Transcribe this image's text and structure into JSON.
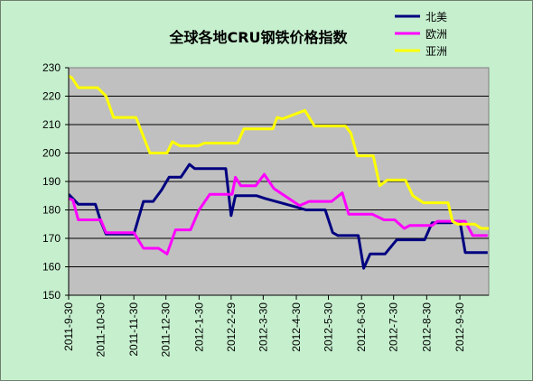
{
  "chart_data": {
    "type": "line",
    "title": "全球各地CRU钢铁价格指数",
    "xlabel": "",
    "ylabel": "",
    "ylim": [
      150,
      230
    ],
    "yticks": [
      150,
      160,
      170,
      180,
      190,
      200,
      210,
      220,
      230
    ],
    "x_range": [
      "2011-9-30",
      "2012-10-27"
    ],
    "x_tick_labels": [
      "2011-9-30",
      "2011-10-30",
      "2011-11-30",
      "2011-12-30",
      "2012-1-30",
      "2012-2-29",
      "2012-3-30",
      "2012-4-30",
      "2012-5-30",
      "2012-6-30",
      "2012-7-30",
      "2012-8-30",
      "2012-9-30"
    ],
    "plot_background": "#c0c0c0",
    "grid": "horizontal",
    "legend_position": "top-right",
    "series": [
      {
        "name": "北美",
        "color": "#000080",
        "points": [
          [
            "2011-9-30",
            185.5
          ],
          [
            "2011-10-4",
            184
          ],
          [
            "2011-10-9",
            182
          ],
          [
            "2011-10-25",
            182
          ],
          [
            "2011-10-30",
            176
          ],
          [
            "2011-11-4",
            171.5
          ],
          [
            "2011-11-30",
            171.5
          ],
          [
            "2011-12-9",
            183
          ],
          [
            "2011-12-18",
            183
          ],
          [
            "2011-12-26",
            187
          ],
          [
            "2012-1-2",
            191.5
          ],
          [
            "2012-1-13",
            191.5
          ],
          [
            "2012-1-21",
            196
          ],
          [
            "2012-1-26",
            194.5
          ],
          [
            "2012-2-24",
            194.5
          ],
          [
            "2012-2-29",
            178
          ],
          [
            "2012-3-4",
            185
          ],
          [
            "2012-3-24",
            185
          ],
          [
            "2012-4-1",
            184
          ],
          [
            "2012-4-30",
            181
          ],
          [
            "2012-5-9",
            180
          ],
          [
            "2012-5-27",
            180
          ],
          [
            "2012-6-3",
            172
          ],
          [
            "2012-6-8",
            171
          ],
          [
            "2012-6-27",
            171
          ],
          [
            "2012-7-2",
            159.5
          ],
          [
            "2012-7-8",
            164.5
          ],
          [
            "2012-7-22",
            164.5
          ],
          [
            "2012-8-2",
            169.5
          ],
          [
            "2012-8-28",
            169.5
          ],
          [
            "2012-9-4",
            175.5
          ],
          [
            "2012-9-22",
            175.5
          ],
          [
            "2012-9-26",
            176
          ],
          [
            "2012-9-30",
            176
          ],
          [
            "2012-10-5",
            165
          ],
          [
            "2012-10-26",
            165
          ]
        ]
      },
      {
        "name": "欧洲",
        "color": "#ff00ff",
        "points": [
          [
            "2011-9-30",
            184
          ],
          [
            "2011-10-4",
            183.5
          ],
          [
            "2011-10-9",
            176.5
          ],
          [
            "2011-10-30",
            176.5
          ],
          [
            "2011-11-4",
            172
          ],
          [
            "2011-11-30",
            172
          ],
          [
            "2011-12-9",
            166.5
          ],
          [
            "2011-12-23",
            166.5
          ],
          [
            "2011-12-31",
            164.5
          ],
          [
            "2012-1-8",
            173
          ],
          [
            "2012-1-22",
            173
          ],
          [
            "2012-1-30",
            180
          ],
          [
            "2012-2-9",
            185.5
          ],
          [
            "2012-3-1",
            185.5
          ],
          [
            "2012-3-4",
            191.5
          ],
          [
            "2012-3-9",
            188.5
          ],
          [
            "2012-3-23",
            188.5
          ],
          [
            "2012-3-31",
            192.5
          ],
          [
            "2012-4-9",
            187.5
          ],
          [
            "2012-5-3",
            181.5
          ],
          [
            "2012-5-12",
            183
          ],
          [
            "2012-6-2",
            183
          ],
          [
            "2012-6-12",
            186
          ],
          [
            "2012-6-18",
            178.5
          ],
          [
            "2012-7-10",
            178.5
          ],
          [
            "2012-7-21",
            176.5
          ],
          [
            "2012-7-31",
            176.5
          ],
          [
            "2012-8-9",
            173.5
          ],
          [
            "2012-8-14",
            174.5
          ],
          [
            "2012-9-4",
            174.5
          ],
          [
            "2012-9-9",
            176
          ],
          [
            "2012-10-5",
            176
          ],
          [
            "2012-10-12",
            171
          ],
          [
            "2012-10-26",
            171
          ]
        ]
      },
      {
        "name": "亚洲",
        "color": "#ffff00",
        "points": [
          [
            "2011-9-30",
            227
          ],
          [
            "2011-10-3",
            226.5
          ],
          [
            "2011-10-9",
            223
          ],
          [
            "2011-10-27",
            223
          ],
          [
            "2011-11-4",
            220
          ],
          [
            "2011-11-11",
            212.5
          ],
          [
            "2011-12-2",
            212.5
          ],
          [
            "2011-12-15",
            200
          ],
          [
            "2011-12-31",
            200
          ],
          [
            "2012-1-5",
            204
          ],
          [
            "2012-1-12",
            202.5
          ],
          [
            "2012-1-29",
            202.5
          ],
          [
            "2012-2-4",
            203.5
          ],
          [
            "2012-3-6",
            203.5
          ],
          [
            "2012-3-12",
            208.5
          ],
          [
            "2012-4-8",
            208.5
          ],
          [
            "2012-4-12",
            212.5
          ],
          [
            "2012-4-17",
            212
          ],
          [
            "2012-5-8",
            215
          ],
          [
            "2012-5-17",
            209.5
          ],
          [
            "2012-6-15",
            209.5
          ],
          [
            "2012-6-20",
            207
          ],
          [
            "2012-6-26",
            199
          ],
          [
            "2012-7-11",
            199
          ],
          [
            "2012-7-17",
            188.5
          ],
          [
            "2012-7-24",
            190.5
          ],
          [
            "2012-8-10",
            190.5
          ],
          [
            "2012-8-17",
            185
          ],
          [
            "2012-8-27",
            182.5
          ],
          [
            "2012-9-19",
            182.5
          ],
          [
            "2012-9-23",
            176
          ],
          [
            "2012-9-28",
            175
          ],
          [
            "2012-10-14",
            175
          ],
          [
            "2012-10-20",
            173.5
          ],
          [
            "2012-11-9",
            173.5
          ]
        ]
      }
    ]
  }
}
